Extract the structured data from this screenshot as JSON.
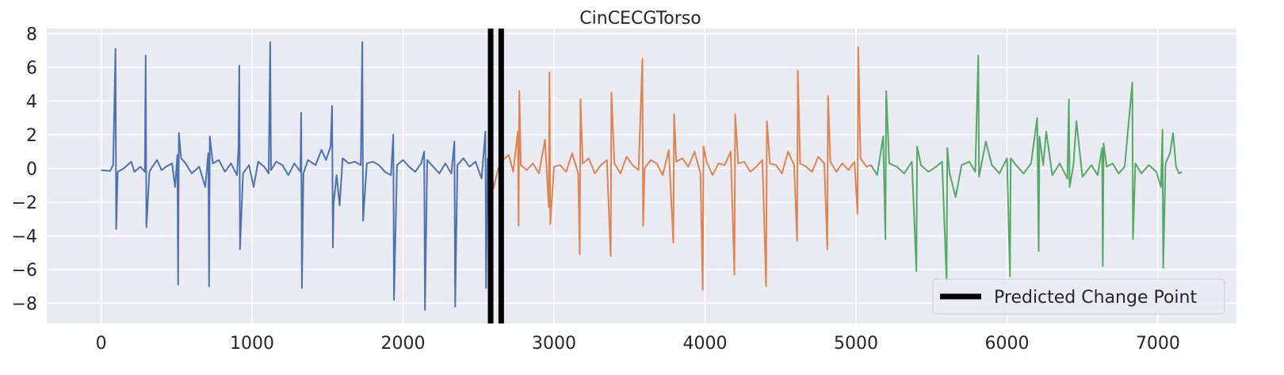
{
  "chart_data": {
    "type": "line",
    "title": "CinCECGTorso",
    "xlabel": "",
    "ylabel": "",
    "xlim": [
      -360,
      7520
    ],
    "ylim": [
      -9.2,
      8.3
    ],
    "x_ticks": [
      0,
      1000,
      2000,
      3000,
      4000,
      5000,
      6000,
      7000
    ],
    "y_ticks": [
      -8,
      -6,
      -4,
      -2,
      0,
      2,
      4,
      6,
      8
    ],
    "grid": true,
    "background": "#EAEAF2",
    "legend": {
      "position": "lower-right",
      "entries": [
        {
          "label": "Predicted Change Point",
          "color": "#000000"
        }
      ]
    },
    "change_points": [
      2580,
      2650
    ],
    "segments": [
      {
        "color": "#4C72B0",
        "start": 0,
        "end": 2600
      },
      {
        "color": "#DD8452",
        "start": 2600,
        "end": 5100
      },
      {
        "color": "#55A868",
        "start": 5100,
        "end": 7160
      }
    ],
    "series": [
      {
        "color": "#4C72B0",
        "points": [
          [
            0,
            -0.1
          ],
          [
            60,
            -0.15
          ],
          [
            80,
            0.2
          ],
          [
            95,
            7.1
          ],
          [
            100,
            -3.6
          ],
          [
            110,
            -0.2
          ],
          [
            150,
            0.0
          ],
          [
            200,
            0.4
          ],
          [
            220,
            -0.2
          ],
          [
            260,
            0.1
          ],
          [
            290,
            -0.2
          ],
          [
            295,
            6.7
          ],
          [
            300,
            -3.5
          ],
          [
            320,
            -0.2
          ],
          [
            340,
            0.1
          ],
          [
            370,
            0.5
          ],
          [
            400,
            -0.1
          ],
          [
            430,
            0.1
          ],
          [
            470,
            0.3
          ],
          [
            490,
            -1.1
          ],
          [
            505,
            0.8
          ],
          [
            510,
            -6.9
          ],
          [
            515,
            2.1
          ],
          [
            530,
            0.6
          ],
          [
            560,
            0.3
          ],
          [
            600,
            -0.3
          ],
          [
            650,
            0.1
          ],
          [
            690,
            -1.1
          ],
          [
            710,
            0.9
          ],
          [
            715,
            -7.0
          ],
          [
            720,
            1.9
          ],
          [
            740,
            0.3
          ],
          [
            780,
            0.5
          ],
          [
            820,
            -0.2
          ],
          [
            860,
            0.3
          ],
          [
            900,
            -0.4
          ],
          [
            910,
            1.2
          ],
          [
            915,
            6.1
          ],
          [
            920,
            -4.8
          ],
          [
            940,
            -0.3
          ],
          [
            980,
            0.2
          ],
          [
            1010,
            -1.1
          ],
          [
            1040,
            0.4
          ],
          [
            1080,
            0.1
          ],
          [
            1110,
            -0.3
          ],
          [
            1120,
            7.5
          ],
          [
            1125,
            -0.1
          ],
          [
            1160,
            0.4
          ],
          [
            1200,
            0.2
          ],
          [
            1240,
            -0.4
          ],
          [
            1280,
            0.3
          ],
          [
            1320,
            -0.2
          ],
          [
            1325,
            3.3
          ],
          [
            1330,
            -7.1
          ],
          [
            1340,
            -0.3
          ],
          [
            1370,
            0.5
          ],
          [
            1420,
            0.2
          ],
          [
            1460,
            1.1
          ],
          [
            1490,
            0.5
          ],
          [
            1520,
            1.3
          ],
          [
            1530,
            3.7
          ],
          [
            1535,
            -4.7
          ],
          [
            1540,
            -2.1
          ],
          [
            1560,
            -0.4
          ],
          [
            1580,
            -2.2
          ],
          [
            1600,
            0.6
          ],
          [
            1640,
            0.3
          ],
          [
            1680,
            0.4
          ],
          [
            1720,
            0.2
          ],
          [
            1730,
            7.5
          ],
          [
            1735,
            -3.1
          ],
          [
            1760,
            0.3
          ],
          [
            1800,
            0.4
          ],
          [
            1840,
            0.2
          ],
          [
            1880,
            -0.2
          ],
          [
            1920,
            -0.4
          ],
          [
            1935,
            2.0
          ],
          [
            1940,
            -7.8
          ],
          [
            1960,
            0.2
          ],
          [
            2000,
            0.5
          ],
          [
            2040,
            0.1
          ],
          [
            2080,
            -0.2
          ],
          [
            2120,
            0.3
          ],
          [
            2140,
            1.0
          ],
          [
            2145,
            -8.4
          ],
          [
            2160,
            0.5
          ],
          [
            2200,
            0.1
          ],
          [
            2240,
            -0.3
          ],
          [
            2280,
            0.3
          ],
          [
            2320,
            -0.3
          ],
          [
            2340,
            1.6
          ],
          [
            2345,
            -8.2
          ],
          [
            2360,
            0.2
          ],
          [
            2400,
            0.6
          ],
          [
            2440,
            0.1
          ],
          [
            2480,
            0.4
          ],
          [
            2520,
            -0.6
          ],
          [
            2545,
            2.2
          ],
          [
            2550,
            -7.1
          ],
          [
            2560,
            0.6
          ],
          [
            2590,
            -0.5
          ],
          [
            2600,
            -1.2
          ]
        ]
      },
      {
        "color": "#DD8452",
        "points": [
          [
            2600,
            -1.2
          ],
          [
            2630,
            0.0
          ],
          [
            2660,
            0.5
          ],
          [
            2700,
            0.8
          ],
          [
            2730,
            -0.2
          ],
          [
            2760,
            2.2
          ],
          [
            2765,
            -3.4
          ],
          [
            2770,
            4.6
          ],
          [
            2780,
            0.2
          ],
          [
            2820,
            -0.1
          ],
          [
            2860,
            0.3
          ],
          [
            2900,
            -0.3
          ],
          [
            2940,
            1.7
          ],
          [
            2965,
            -2.3
          ],
          [
            2970,
            5.7
          ],
          [
            2975,
            -3.3
          ],
          [
            3000,
            0.1
          ],
          [
            3040,
            0.2
          ],
          [
            3080,
            -0.2
          ],
          [
            3120,
            0.9
          ],
          [
            3160,
            -0.3
          ],
          [
            3170,
            -5.1
          ],
          [
            3175,
            4.1
          ],
          [
            3190,
            0.3
          ],
          [
            3230,
            0.6
          ],
          [
            3270,
            -0.3
          ],
          [
            3310,
            0.2
          ],
          [
            3350,
            0.5
          ],
          [
            3375,
            -5.2
          ],
          [
            3380,
            4.5
          ],
          [
            3400,
            0.3
          ],
          [
            3440,
            -0.3
          ],
          [
            3480,
            0.7
          ],
          [
            3520,
            0.2
          ],
          [
            3560,
            -0.1
          ],
          [
            3585,
            6.5
          ],
          [
            3590,
            -3.4
          ],
          [
            3600,
            0.0
          ],
          [
            3640,
            0.5
          ],
          [
            3680,
            0.3
          ],
          [
            3720,
            -0.4
          ],
          [
            3760,
            1.1
          ],
          [
            3790,
            -4.4
          ],
          [
            3795,
            3.2
          ],
          [
            3810,
            0.4
          ],
          [
            3850,
            0.6
          ],
          [
            3890,
            0.1
          ],
          [
            3930,
            1.0
          ],
          [
            3970,
            -0.3
          ],
          [
            3985,
            -7.2
          ],
          [
            3990,
            1.3
          ],
          [
            4010,
            0.4
          ],
          [
            4050,
            -0.4
          ],
          [
            4090,
            0.3
          ],
          [
            4130,
            0.2
          ],
          [
            4170,
            1.0
          ],
          [
            4195,
            -6.3
          ],
          [
            4200,
            3.2
          ],
          [
            4220,
            0.3
          ],
          [
            4260,
            0.4
          ],
          [
            4300,
            -0.2
          ],
          [
            4340,
            0.1
          ],
          [
            4380,
            0.5
          ],
          [
            4405,
            -7.0
          ],
          [
            4410,
            2.8
          ],
          [
            4430,
            0.3
          ],
          [
            4470,
            0.2
          ],
          [
            4510,
            -0.3
          ],
          [
            4550,
            1.0
          ],
          [
            4590,
            0.2
          ],
          [
            4610,
            -4.3
          ],
          [
            4615,
            5.8
          ],
          [
            4630,
            0.3
          ],
          [
            4670,
            0.1
          ],
          [
            4710,
            -0.2
          ],
          [
            4750,
            0.7
          ],
          [
            4790,
            0.3
          ],
          [
            4810,
            -4.8
          ],
          [
            4815,
            4.3
          ],
          [
            4830,
            0.4
          ],
          [
            4870,
            -0.2
          ],
          [
            4910,
            0.3
          ],
          [
            4950,
            -0.1
          ],
          [
            4990,
            0.4
          ],
          [
            5010,
            -2.7
          ],
          [
            5015,
            7.2
          ],
          [
            5030,
            0.6
          ],
          [
            5070,
            0.1
          ],
          [
            5100,
            0.2
          ]
        ]
      },
      {
        "color": "#55A868",
        "points": [
          [
            5100,
            0.2
          ],
          [
            5140,
            -0.4
          ],
          [
            5180,
            1.9
          ],
          [
            5195,
            -4.2
          ],
          [
            5200,
            4.6
          ],
          [
            5220,
            0.3
          ],
          [
            5270,
            0.1
          ],
          [
            5320,
            -0.3
          ],
          [
            5370,
            0.4
          ],
          [
            5400,
            -6.1
          ],
          [
            5405,
            1.3
          ],
          [
            5430,
            0.2
          ],
          [
            5480,
            -0.2
          ],
          [
            5530,
            0.1
          ],
          [
            5570,
            0.4
          ],
          [
            5600,
            -6.7
          ],
          [
            5605,
            1.2
          ],
          [
            5620,
            -0.3
          ],
          [
            5660,
            -1.7
          ],
          [
            5700,
            0.2
          ],
          [
            5750,
            0.4
          ],
          [
            5790,
            -0.2
          ],
          [
            5810,
            6.7
          ],
          [
            5815,
            -0.5
          ],
          [
            5860,
            1.6
          ],
          [
            5900,
            0.2
          ],
          [
            5950,
            -0.3
          ],
          [
            6000,
            0.6
          ],
          [
            6020,
            -6.4
          ],
          [
            6025,
            0.6
          ],
          [
            6060,
            0.2
          ],
          [
            6110,
            -0.3
          ],
          [
            6160,
            0.3
          ],
          [
            6200,
            3.0
          ],
          [
            6210,
            -4.9
          ],
          [
            6215,
            1.9
          ],
          [
            6240,
            0.2
          ],
          [
            6260,
            2.2
          ],
          [
            6300,
            -0.4
          ],
          [
            6350,
            0.3
          ],
          [
            6400,
            -0.6
          ],
          [
            6410,
            4.1
          ],
          [
            6415,
            -1.1
          ],
          [
            6440,
            0.2
          ],
          [
            6460,
            2.8
          ],
          [
            6500,
            -0.5
          ],
          [
            6560,
            0.2
          ],
          [
            6600,
            -0.4
          ],
          [
            6630,
            1.2
          ],
          [
            6635,
            -5.8
          ],
          [
            6640,
            1.5
          ],
          [
            6660,
            0.1
          ],
          [
            6700,
            0.3
          ],
          [
            6740,
            -0.3
          ],
          [
            6780,
            0.1
          ],
          [
            6830,
            5.1
          ],
          [
            6835,
            -4.2
          ],
          [
            6850,
            0.3
          ],
          [
            6890,
            -0.3
          ],
          [
            6940,
            0.2
          ],
          [
            6990,
            -0.2
          ],
          [
            7020,
            -1.1
          ],
          [
            7030,
            2.3
          ],
          [
            7035,
            -5.9
          ],
          [
            7050,
            0.3
          ],
          [
            7080,
            0.9
          ],
          [
            7100,
            2.1
          ],
          [
            7120,
            0.1
          ],
          [
            7140,
            -0.3
          ],
          [
            7160,
            -0.2
          ]
        ]
      }
    ]
  }
}
